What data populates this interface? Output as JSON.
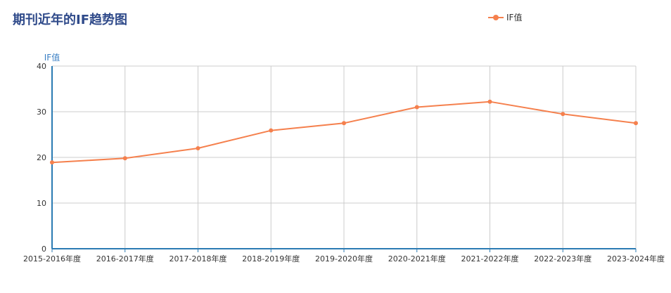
{
  "chart_title": "期刊近年的IF趋势图",
  "colors": {
    "title": "#2f4a8a",
    "series": "#f5804d",
    "axis": "#2b7bb3",
    "grid": "#cccccc"
  },
  "chart_data": {
    "type": "line",
    "title": "期刊近年的IF趋势图",
    "xlabel": "",
    "ylabel": "IF值",
    "ylim": [
      0,
      40
    ],
    "yticks": [
      0,
      10,
      20,
      30,
      40
    ],
    "grid": true,
    "legend_position": "top-right",
    "categories": [
      "2015-2016年度",
      "2016-2017年度",
      "2017-2018年度",
      "2018-2019年度",
      "2019-2020年度",
      "2020-2021年度",
      "2021-2022年度",
      "2022-2023年度",
      "2023-2024年度"
    ],
    "series": [
      {
        "name": "IF值",
        "color": "#f5804d",
        "values": [
          18.9,
          19.8,
          22.0,
          25.9,
          27.5,
          31.0,
          32.2,
          29.5,
          27.5
        ]
      }
    ]
  }
}
